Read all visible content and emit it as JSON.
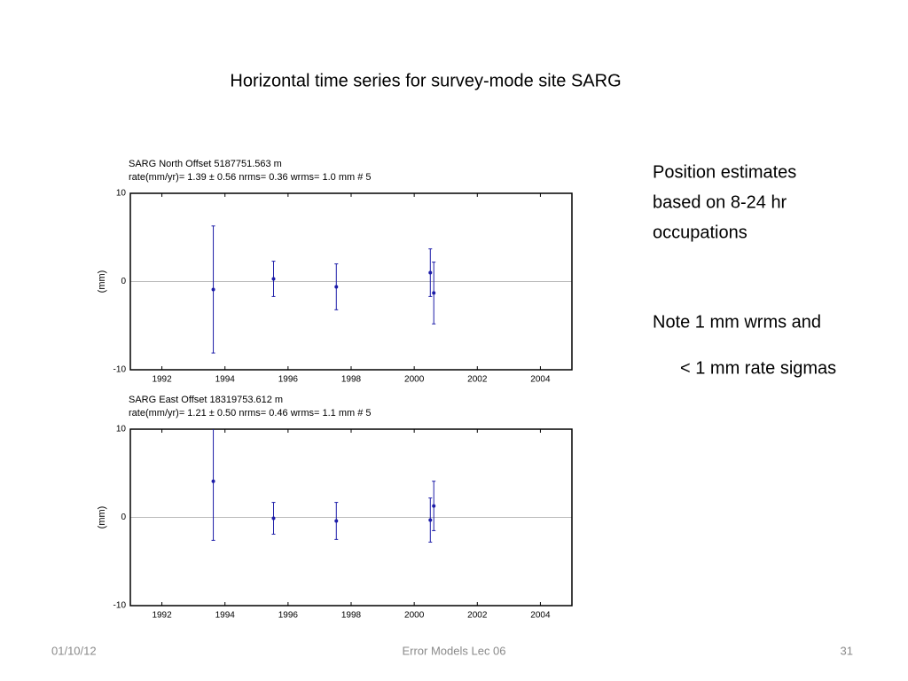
{
  "slide": {
    "title": "Horizontal time series for survey-mode site SARG",
    "notes": [
      "Position estimates",
      "based on 8-24 hr",
      "occupations",
      "Note 1 mm wrms and",
      "< 1 mm rate sigmas"
    ],
    "footer": {
      "date": "01/10/12",
      "center": "Error Models Lec 06",
      "page": "31"
    }
  },
  "chart_data": [
    {
      "type": "errorbar",
      "title": "SARG  North Offset  5187751.563 m",
      "subtitle": "rate(mm/yr)=    1.39 ±  0.56  nrms=  0.36  wrms=   1.0 mm # 5",
      "y_label": "(mm)",
      "color": "#1c1ca8",
      "x": [
        1993.63,
        1995.54,
        1997.53,
        2000.51,
        2000.62
      ],
      "values": [
        -0.9,
        0.3,
        -0.6,
        1.0,
        -1.3
      ],
      "errors": [
        7.2,
        2.0,
        2.6,
        2.7,
        3.5
      ],
      "xlim": [
        1991,
        2005
      ],
      "xticks": [
        1992,
        1994,
        1996,
        1998,
        2000,
        2002,
        2004
      ],
      "ylim": [
        -10,
        10
      ],
      "yticks": [
        10,
        0,
        -10
      ]
    },
    {
      "type": "errorbar",
      "title": "SARG  East Offset  18319753.612 m",
      "subtitle": "rate(mm/yr)=    1.21 ±  0.50  nrms=  0.46  wrms=   1.1 mm # 5",
      "y_label": "(mm)",
      "color": "#1c1ca8",
      "x": [
        1993.63,
        1995.54,
        1997.53,
        2000.51,
        2000.62
      ],
      "values": [
        4.1,
        -0.1,
        -0.4,
        -0.3,
        1.3
      ],
      "errors": [
        6.7,
        1.8,
        2.1,
        2.5,
        2.8
      ],
      "xlim": [
        1991,
        2005
      ],
      "xticks": [
        1992,
        1994,
        1996,
        1998,
        2000,
        2002,
        2004
      ],
      "ylim": [
        -10,
        10
      ],
      "yticks": [
        10,
        0,
        -10
      ]
    }
  ]
}
